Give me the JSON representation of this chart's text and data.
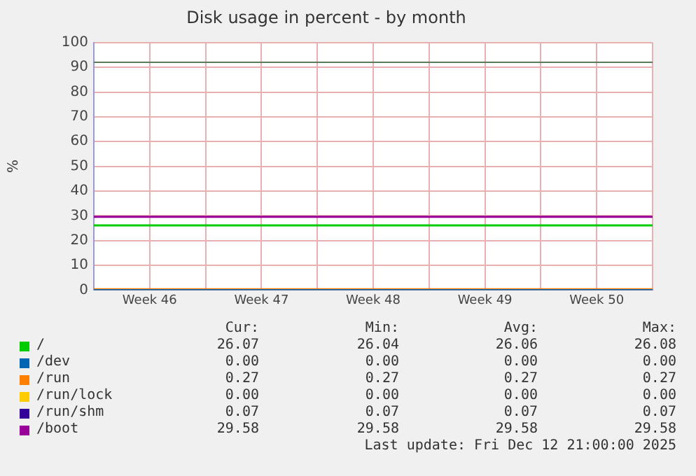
{
  "chart_data": {
    "type": "line",
    "title": "Disk usage in percent - by month",
    "ylabel": "%",
    "categories": [
      null,
      "Week 46",
      null,
      "Week 47",
      null,
      "Week 48",
      null,
      "Week 49",
      null,
      "Week 50",
      null
    ],
    "ylim": [
      0,
      100
    ],
    "yticks": [
      0,
      10,
      20,
      30,
      40,
      50,
      60,
      70,
      80,
      90,
      100
    ],
    "grid": true,
    "legend": "bottom",
    "marker": "none",
    "line_style": "solid",
    "series": [
      {
        "name": "/",
        "color": "#00cc00",
        "values": [
          26.1,
          26.1,
          26.1,
          26.1,
          26.1,
          26.1,
          26.1,
          26.1,
          26.1,
          26.1,
          26.1
        ]
      },
      {
        "name": "/dev",
        "color": "#0066b3",
        "values": [
          0,
          0,
          0,
          0,
          0,
          0,
          0,
          0,
          0,
          0,
          0
        ]
      },
      {
        "name": "/run",
        "color": "#ff8000",
        "values": [
          0.3,
          0.3,
          0.3,
          0.3,
          0.3,
          0.3,
          0.3,
          0.3,
          0.3,
          0.3,
          0.3
        ]
      },
      {
        "name": "/run/lock",
        "color": "#ffcc00",
        "values": [
          null,
          null,
          null,
          null,
          null,
          null,
          null,
          null,
          null,
          null,
          null
        ]
      },
      {
        "name": "/run/shm",
        "color": "#330099",
        "values": [
          null,
          null,
          null,
          null,
          null,
          null,
          null,
          null,
          null,
          null,
          null
        ]
      },
      {
        "name": "/boot",
        "color": "#990099",
        "values": [
          29.6,
          29.6,
          29.6,
          29.6,
          29.6,
          29.6,
          29.6,
          29.6,
          29.6,
          29.6,
          29.6
        ]
      }
    ],
    "ref_lines": [
      {
        "axis": "y",
        "value": 92,
        "color": "#5a7a5a"
      }
    ],
    "annotations": [
      "Cur:",
      "Min:",
      "Avg:",
      "Max:",
      "26.07",
      "26.04",
      "26.06",
      "26.08",
      "0.00",
      "0.00",
      "0.00",
      "0.00",
      "0.27",
      "0.27",
      "0.27",
      "0.27",
      "0.00",
      "0.00",
      "0.00",
      "0.00",
      "0.07",
      "0.07",
      "0.07",
      "0.07",
      "29.58",
      "29.58",
      "29.58",
      "29.58",
      "Last update: Fri Dec 12 21:00:00 2025"
    ]
  }
}
